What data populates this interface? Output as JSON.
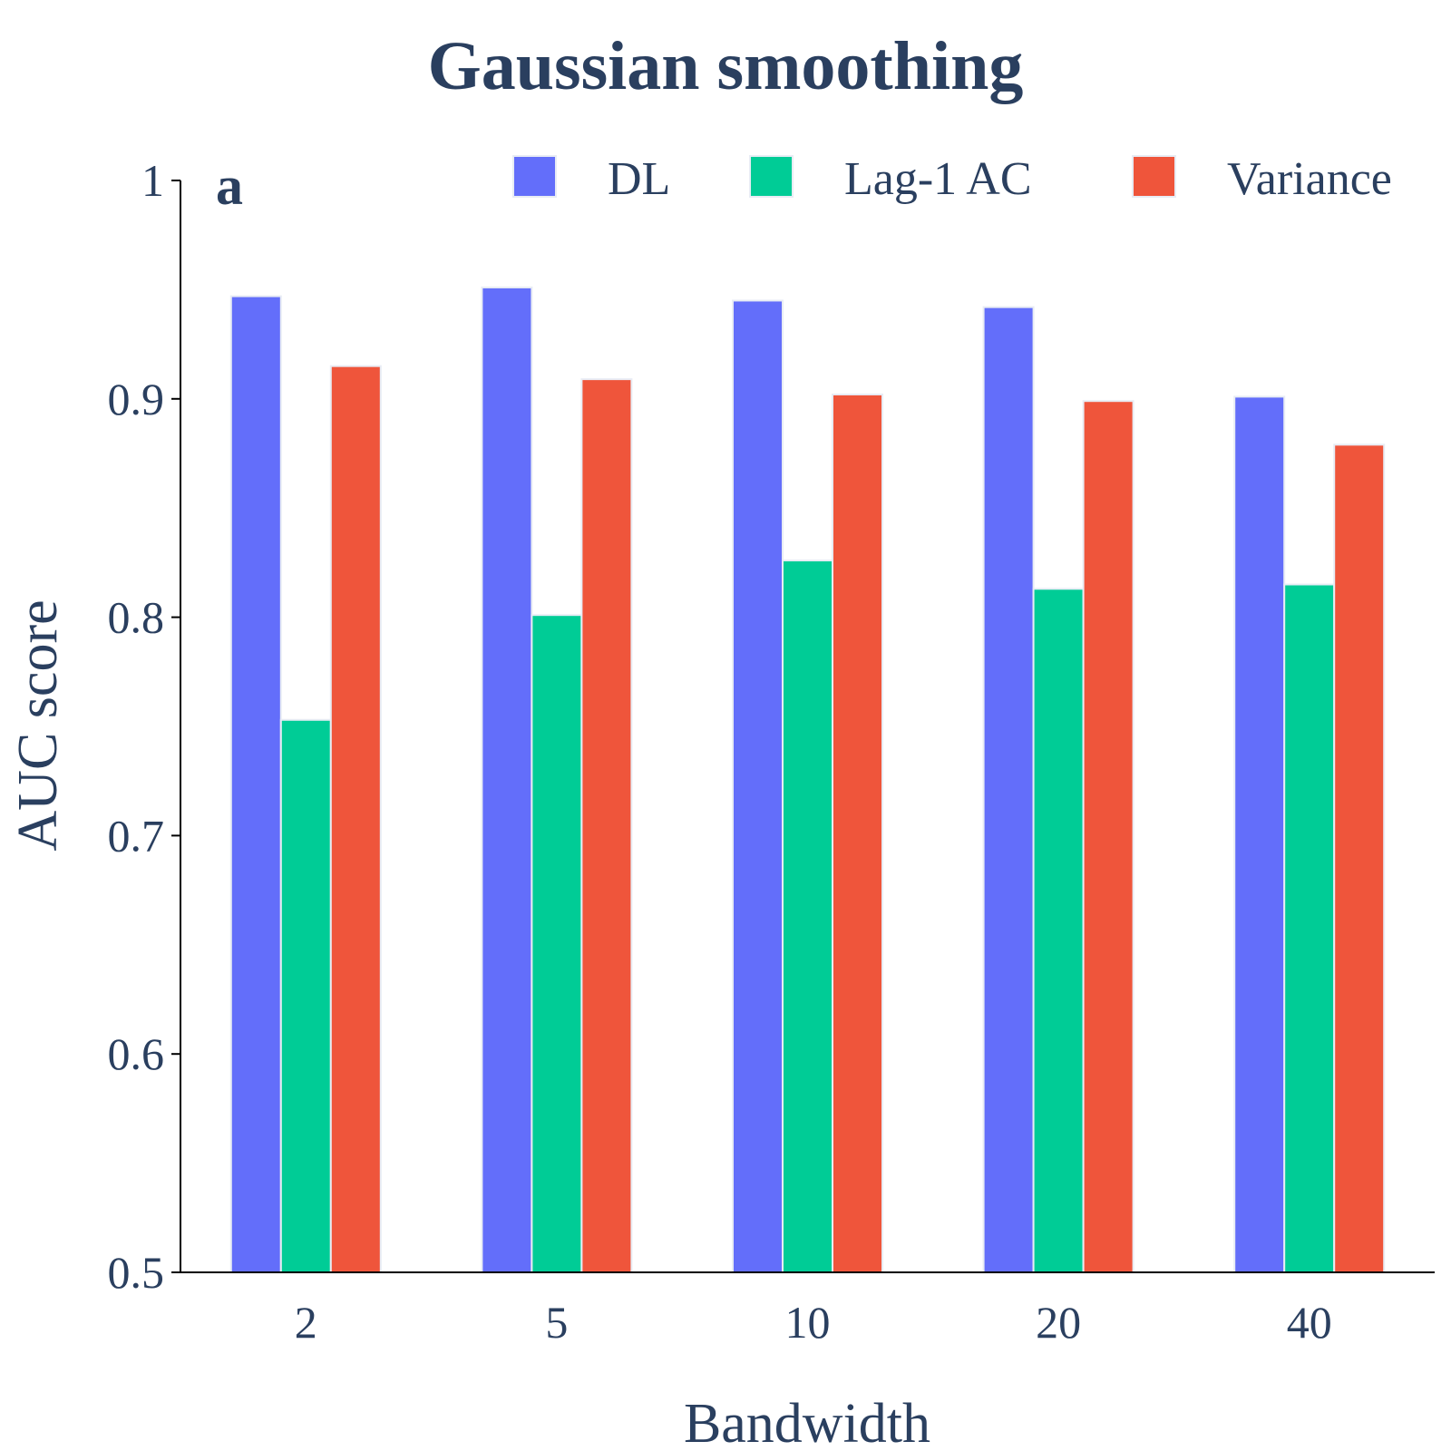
{
  "chart_data": {
    "type": "bar",
    "title": "Gaussian smoothing",
    "panel_label": "a",
    "xlabel": "Bandwidth",
    "ylabel": "AUC score",
    "categories": [
      "2",
      "5",
      "10",
      "20",
      "40"
    ],
    "ylim": [
      0.5,
      1.0
    ],
    "yticks": [
      0.5,
      0.6,
      0.7,
      0.8,
      0.9,
      1.0
    ],
    "ytick_labels": [
      "0.5",
      "0.6",
      "0.7",
      "0.8",
      "0.9",
      "1"
    ],
    "grid": false,
    "legend_position": "top-right",
    "series": [
      {
        "name": "DL",
        "color": "#636efa",
        "values": [
          0.947,
          0.951,
          0.945,
          0.942,
          0.901
        ]
      },
      {
        "name": "Lag-1 AC",
        "color": "#00cc96",
        "values": [
          0.753,
          0.801,
          0.826,
          0.813,
          0.815
        ]
      },
      {
        "name": "Variance",
        "color": "#ef553b",
        "values": [
          0.915,
          0.909,
          0.902,
          0.899,
          0.879
        ]
      }
    ]
  }
}
